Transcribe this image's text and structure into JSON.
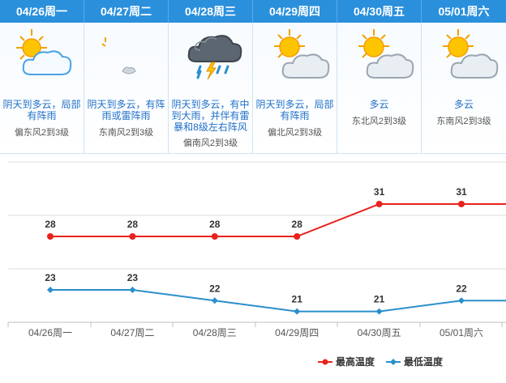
{
  "days": [
    {
      "label": "04/26周一",
      "desc": "阴天到多云，局部有阵雨",
      "wind": "偏东风2到3级",
      "icon": "sun-cloud-icon"
    },
    {
      "label": "04/27周二",
      "desc": "阴天到多云，有阵雨或雷阵雨",
      "wind": "东南风2到3级",
      "icon": "partial-weather-icon"
    },
    {
      "label": "04/28周三",
      "desc": "阴天到多云，有中到大雨，并伴有雷暴和8级左右阵风",
      "wind": "偏南风2到3级",
      "icon": "thunderstorm-icon"
    },
    {
      "label": "04/29周四",
      "desc": "阴天到多云，局部有阵雨",
      "wind": "偏北风2到3级",
      "icon": "sun-cloud-icon"
    },
    {
      "label": "04/30周五",
      "desc": "多云",
      "wind": "东北风2到3级",
      "icon": "sun-cloud-icon"
    },
    {
      "label": "05/01周六",
      "desc": "多云",
      "wind": "东南风2到3级",
      "icon": "sun-cloud-icon"
    }
  ],
  "chart_data": {
    "type": "line",
    "categories": [
      "04/26周一",
      "04/27周二",
      "04/28周三",
      "04/29周四",
      "04/30周五",
      "05/01周六"
    ],
    "series": [
      {
        "name": "最高温度",
        "values": [
          28,
          28,
          28,
          28,
          31,
          31
        ],
        "color": "#e8231c"
      },
      {
        "name": "最低温度",
        "values": [
          23,
          23,
          22,
          21,
          21,
          22
        ],
        "color": "#2a8fcc"
      }
    ],
    "legend_position": "bottom-right",
    "grid": true
  },
  "colors": {
    "header": "#2a90dc",
    "text_blue": "#1f6fc8"
  }
}
